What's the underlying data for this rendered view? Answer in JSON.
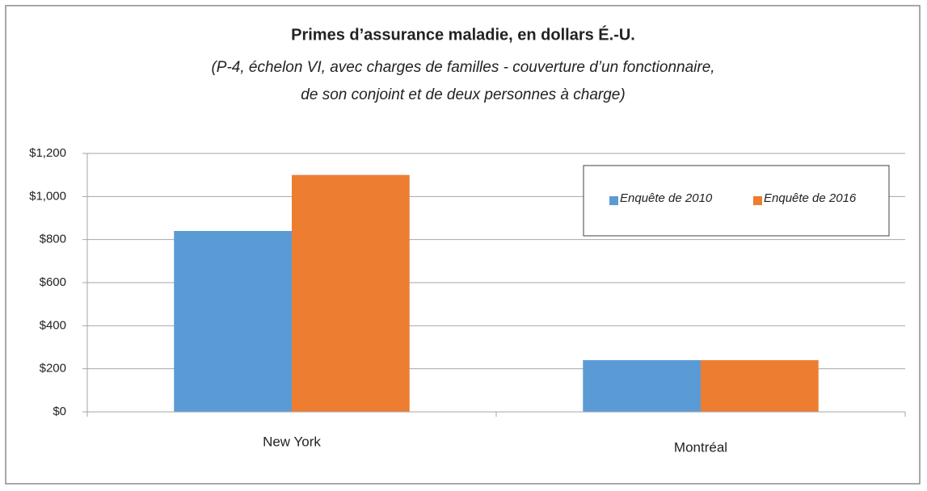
{
  "chart_data": {
    "type": "bar",
    "title": "Primes d’assurance maladie, en dollars É.-U.",
    "subtitle": [
      "(P-4, échelon VI, avec charges de familles - couverture d’un fonctionnaire,",
      "de son conjoint et de deux personnes à charge)"
    ],
    "categories": [
      "New York",
      "Montréal"
    ],
    "series": [
      {
        "name": "Enquête de 2010",
        "color": "#5b9bd5",
        "values": [
          840,
          240
        ]
      },
      {
        "name": "Enquête de 2016",
        "color": "#ed7d31",
        "values": [
          1100,
          240
        ]
      }
    ],
    "ylim": [
      0,
      1200
    ],
    "yticks": [
      {
        "value": 0,
        "label": "$0"
      },
      {
        "value": 200,
        "label": "$200"
      },
      {
        "value": 400,
        "label": "$400"
      },
      {
        "value": 600,
        "label": "$600"
      },
      {
        "value": 800,
        "label": "$800"
      },
      {
        "value": 1000,
        "label": "$1,000"
      },
      {
        "value": 1200,
        "label": "$1,200"
      }
    ],
    "grid": true,
    "legend": "upper right"
  }
}
